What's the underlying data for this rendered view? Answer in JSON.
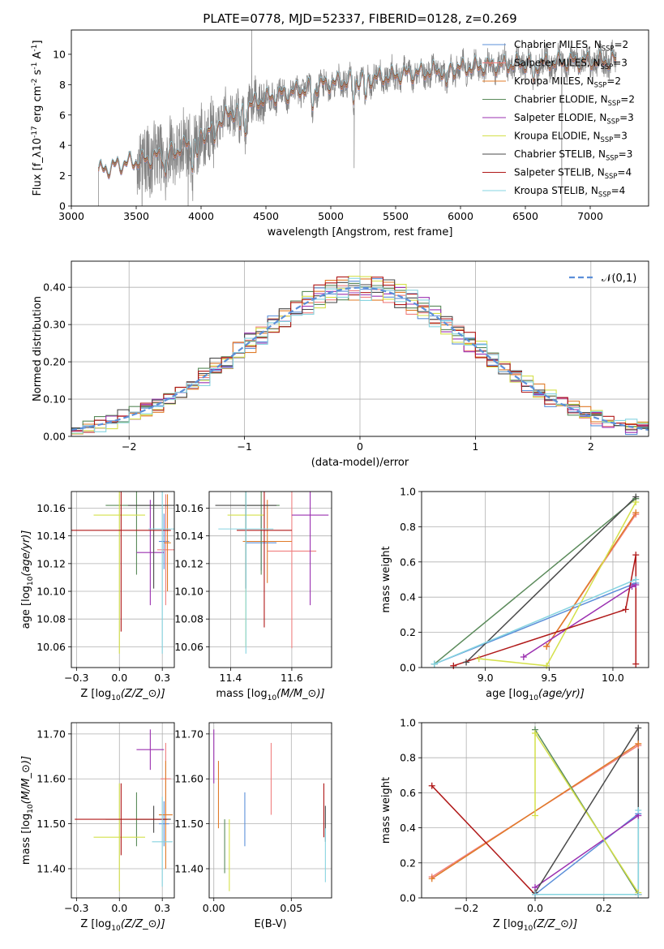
{
  "figure": {
    "title": "PLATE=0778, MJD=52337, FIBERID=0128, z=0.269"
  },
  "model_styles": [
    {
      "name": "Chabrier MILES, N$_{SSP}$=2",
      "color": "#5b8fd9"
    },
    {
      "name": "Salpeter MILES, N$_{SSP}$=3",
      "color": "#f08080"
    },
    {
      "name": "Kroupa MILES, N$_{SSP}$=2",
      "color": "#e07b28"
    },
    {
      "name": "Chabrier ELODIE, N$_{SSP}$=2",
      "color": "#5a8a5a"
    },
    {
      "name": "Salpeter ELODIE, N$_{SSP}$=3",
      "color": "#9b30b0"
    },
    {
      "name": "Kroupa ELODIE, N$_{SSP}$=3",
      "color": "#d4e04a"
    },
    {
      "name": "Chabrier STELIB, N$_{SSP}$=3",
      "color": "#4a4a4a"
    },
    {
      "name": "Salpeter STELIB, N$_{SSP}$=4",
      "color": "#b01818"
    },
    {
      "name": "Kroupa STELIB, N$_{SSP}$=4",
      "color": "#86d4e0"
    }
  ],
  "chart_data": [
    {
      "id": "spectrum",
      "type": "line",
      "xlabel": "wavelength [Angstrom, rest frame]",
      "ylabel": "Flux [f$_\\lambda$10$^{-17}$ erg cm$^{-2}$ s$^{-1}$ A$^{-1}$]",
      "xlim": [
        3000,
        7450
      ],
      "ylim": [
        0,
        11.6
      ],
      "xticks": [
        3000,
        3500,
        4000,
        4500,
        5000,
        5500,
        6000,
        6500,
        7000
      ],
      "yticks": [
        0,
        2,
        4,
        6,
        8,
        10
      ],
      "legend": "top-right",
      "data_color": "#808080",
      "data_range": [
        3210,
        7200
      ],
      "continuum": [
        [
          3210,
          2.3
        ],
        [
          3400,
          2.8
        ],
        [
          3600,
          3.1
        ],
        [
          3800,
          3.6
        ],
        [
          4000,
          4.6
        ],
        [
          4200,
          6.0
        ],
        [
          4500,
          7.1
        ],
        [
          5000,
          8.1
        ],
        [
          5500,
          8.6
        ],
        [
          6000,
          9.1
        ],
        [
          6500,
          9.4
        ],
        [
          7200,
          9.6
        ]
      ]
    },
    {
      "id": "residuals",
      "type": "line",
      "xlabel": "(data-model)/error",
      "ylabel": "Normed distribution",
      "xlim": [
        -2.5,
        2.5
      ],
      "ylim": [
        0,
        0.47
      ],
      "xticks": [
        -2,
        -1,
        0,
        1,
        2
      ],
      "yticks": [
        0.0,
        0.1,
        0.2,
        0.3,
        0.4
      ],
      "grid": true,
      "legend": "top-right",
      "reference_curve": {
        "name": "$\\mathcal{N}(0,1)$",
        "color": "#5b8fd9",
        "mean": 0,
        "sigma": 1
      },
      "bin_width": 0.1
    },
    {
      "id": "age-vs-Z",
      "type": "scatter",
      "xlabel": "Z [log$_{10}$($Z/Z_\\odot$)]",
      "ylabel": "age  [log$_{10}$($age/yr$)]",
      "xlim": [
        -0.28,
        0.32
      ],
      "ylim": [
        10.045,
        10.172
      ],
      "xticks": [
        -0.25,
        0.0,
        0.25
      ],
      "yticks": [
        10.06,
        10.08,
        10.1,
        10.12,
        10.14,
        10.16
      ],
      "grid": true,
      "points": [
        {
          "series": 0,
          "x": 0.26,
          "y": 10.136,
          "xerr": 0.03,
          "yerr": 0.02
        },
        {
          "series": 1,
          "x": 0.27,
          "y": 10.13,
          "xerr": 0.05,
          "yerr": 0.04
        },
        {
          "series": 2,
          "x": 0.28,
          "y": 10.135,
          "xerr": 0.02,
          "yerr": 0.035
        },
        {
          "series": 3,
          "x": 0.1,
          "y": 10.162,
          "xerr": 0.18,
          "yerr": 0.05
        },
        {
          "series": 4,
          "x": 0.18,
          "y": 10.128,
          "xerr": 0.08,
          "yerr": 0.038
        },
        {
          "series": 5,
          "x": 0.0,
          "y": 10.155,
          "xerr": 0.15,
          "yerr": 0.1
        },
        {
          "series": 6,
          "x": 0.2,
          "y": 10.162,
          "xerr": 0.15,
          "yerr": 0.06
        },
        {
          "series": 7,
          "x": 0.01,
          "y": 10.144,
          "xerr": 0.29,
          "yerr": 0.073
        },
        {
          "series": 8,
          "x": 0.25,
          "y": 10.145,
          "xerr": 0.08,
          "yerr": 0.09
        }
      ]
    },
    {
      "id": "age-vs-mass",
      "type": "scatter",
      "xlabel": "mass [log$_{10}$($M/M_\\odot$)]",
      "ylabel": "",
      "xlim": [
        11.33,
        11.73
      ],
      "ylim": [
        10.045,
        10.172
      ],
      "xticks": [
        11.4,
        11.6
      ],
      "yticks": [
        10.06,
        10.08,
        10.1,
        10.12,
        10.14,
        10.16
      ],
      "grid": true,
      "points": [
        {
          "series": 0,
          "x": 11.5,
          "y": 10.135,
          "xerr": 0.05,
          "yerr": 0.02
        },
        {
          "series": 1,
          "x": 11.6,
          "y": 10.129,
          "xerr": 0.08,
          "yerr": 0.07
        },
        {
          "series": 2,
          "x": 11.52,
          "y": 10.136,
          "xerr": 0.08,
          "yerr": 0.03
        },
        {
          "series": 3,
          "x": 11.5,
          "y": 10.162,
          "xerr": 0.06,
          "yerr": 0.05
        },
        {
          "series": 4,
          "x": 11.66,
          "y": 10.155,
          "xerr": 0.06,
          "yerr": 0.065
        },
        {
          "series": 5,
          "x": 11.45,
          "y": 10.155,
          "xerr": 0.06,
          "yerr": 0.095
        },
        {
          "series": 6,
          "x": 11.45,
          "y": 10.162,
          "xerr": 0.1,
          "yerr": 0.06
        },
        {
          "series": 7,
          "x": 11.51,
          "y": 10.144,
          "xerr": 0.09,
          "yerr": 0.07
        },
        {
          "series": 8,
          "x": 11.45,
          "y": 10.145,
          "xerr": 0.09,
          "yerr": 0.09
        }
      ]
    },
    {
      "id": "weight-vs-age",
      "type": "line",
      "xlabel": "age  [log$_{10}$($age/yr$)]",
      "ylabel": "mass weight",
      "xlim": [
        8.5,
        10.28
      ],
      "ylim": [
        0,
        1
      ],
      "xticks": [
        9.0,
        9.5,
        10.0
      ],
      "yticks": [
        0.0,
        0.2,
        0.4,
        0.6,
        0.8,
        1.0
      ],
      "grid": true,
      "series": [
        {
          "series": 0,
          "x": [
            8.6,
            10.18
          ],
          "y": [
            0.02,
            0.48
          ]
        },
        {
          "series": 1,
          "x": [
            9.48,
            10.18
          ],
          "y": [
            0.12,
            0.87
          ]
        },
        {
          "series": 2,
          "x": [
            9.48,
            10.18
          ],
          "y": [
            0.12,
            0.88
          ]
        },
        {
          "series": 3,
          "x": [
            8.6,
            10.18
          ],
          "y": [
            0.02,
            0.96
          ]
        },
        {
          "series": 4,
          "x": [
            9.3,
            10.15,
            10.18
          ],
          "y": [
            0.06,
            0.46,
            0.47
          ]
        },
        {
          "series": 5,
          "x": [
            8.95,
            9.48,
            10.18
          ],
          "y": [
            0.05,
            0.01,
            0.94
          ]
        },
        {
          "series": 6,
          "x": [
            8.85,
            10.18
          ],
          "y": [
            0.03,
            0.97
          ]
        },
        {
          "series": 7,
          "x": [
            8.75,
            10.1,
            10.18,
            10.18
          ],
          "y": [
            0.01,
            0.33,
            0.64,
            0.02
          ]
        },
        {
          "series": 8,
          "x": [
            8.6,
            10.18
          ],
          "y": [
            0.02,
            0.5
          ]
        }
      ]
    },
    {
      "id": "mass-vs-Z",
      "type": "scatter",
      "xlabel": "Z [log$_{10}$($Z/Z_\\odot$)]",
      "ylabel": "mass [log$_{10}$($M/M_\\odot$)]",
      "xlim": [
        -0.28,
        0.32
      ],
      "ylim": [
        11.335,
        11.725
      ],
      "xticks": [
        -0.25,
        0.0,
        0.25
      ],
      "yticks": [
        11.4,
        11.5,
        11.6,
        11.7
      ],
      "grid": true,
      "points": [
        {
          "series": 0,
          "x": 0.26,
          "y": 11.5,
          "xerr": 0.03,
          "yerr": 0.05
        },
        {
          "series": 1,
          "x": 0.27,
          "y": 11.6,
          "xerr": 0.03,
          "yerr": 0.08
        },
        {
          "series": 2,
          "x": 0.27,
          "y": 11.52,
          "xerr": 0.04,
          "yerr": 0.12
        },
        {
          "series": 3,
          "x": 0.1,
          "y": 11.51,
          "xerr": 0.18,
          "yerr": 0.06
        },
        {
          "series": 4,
          "x": 0.18,
          "y": 11.665,
          "xerr": 0.08,
          "yerr": 0.045
        },
        {
          "series": 5,
          "x": 0.0,
          "y": 11.47,
          "xerr": 0.15,
          "yerr": 0.12
        },
        {
          "series": 6,
          "x": 0.2,
          "y": 11.51,
          "xerr": 0.1,
          "yerr": 0.03
        },
        {
          "series": 7,
          "x": 0.01,
          "y": 11.51,
          "xerr": 0.27,
          "yerr": 0.08
        },
        {
          "series": 8,
          "x": 0.25,
          "y": 11.46,
          "xerr": 0.06,
          "yerr": 0.1
        }
      ]
    },
    {
      "id": "mass-vs-EBV",
      "type": "scatter",
      "xlabel": "E(B-V)",
      "ylabel": "",
      "xlim": [
        -0.003,
        0.076
      ],
      "ylim": [
        11.335,
        11.725
      ],
      "xticks": [
        0.0,
        0.05
      ],
      "yticks": [
        11.4,
        11.5,
        11.6,
        11.7
      ],
      "grid": true,
      "points": [
        {
          "series": 0,
          "x": 0.02,
          "y": 11.51,
          "xerr": 0,
          "yerr": 0.06
        },
        {
          "series": 1,
          "x": 0.037,
          "y": 11.6,
          "xerr": 0,
          "yerr": 0.08
        },
        {
          "series": 2,
          "x": 0.003,
          "y": 11.565,
          "xerr": 0,
          "yerr": 0.075
        },
        {
          "series": 3,
          "x": 0.007,
          "y": 11.45,
          "xerr": 0,
          "yerr": 0.06
        },
        {
          "series": 4,
          "x": 0.0,
          "y": 11.65,
          "xerr": 0,
          "yerr": 0.06
        },
        {
          "series": 5,
          "x": 0.01,
          "y": 11.43,
          "xerr": 0,
          "yerr": 0.08
        },
        {
          "series": 6,
          "x": 0.072,
          "y": 11.5,
          "xerr": 0,
          "yerr": 0.04
        },
        {
          "series": 7,
          "x": 0.071,
          "y": 11.53,
          "xerr": 0,
          "yerr": 0.06
        },
        {
          "series": 8,
          "x": 0.072,
          "y": 11.43,
          "xerr": 0,
          "yerr": 0.06
        }
      ]
    },
    {
      "id": "weight-vs-Z",
      "type": "line",
      "xlabel": "Z [log$_{10}$($Z/Z_\\odot$)]",
      "ylabel": "mass weight",
      "xlim": [
        -0.33,
        0.33
      ],
      "ylim": [
        0,
        1
      ],
      "xticks": [
        -0.2,
        0.0,
        0.2
      ],
      "yticks": [
        0.0,
        0.2,
        0.4,
        0.6,
        0.8,
        1.0
      ],
      "grid": true,
      "series": [
        {
          "series": 0,
          "x": [
            0.0,
            0.3
          ],
          "y": [
            0.02,
            0.48
          ]
        },
        {
          "series": 1,
          "x": [
            -0.3,
            0.3
          ],
          "y": [
            0.12,
            0.87
          ]
        },
        {
          "series": 2,
          "x": [
            -0.3,
            0.3
          ],
          "y": [
            0.11,
            0.88
          ]
        },
        {
          "series": 3,
          "x": [
            0.0,
            0.3
          ],
          "y": [
            0.96,
            0.02
          ]
        },
        {
          "series": 4,
          "x": [
            0.0,
            0.3
          ],
          "y": [
            0.06,
            0.47
          ]
        },
        {
          "series": 5,
          "x": [
            0.0,
            0.0,
            0.3
          ],
          "y": [
            0.47,
            0.94,
            0.03
          ]
        },
        {
          "series": 6,
          "x": [
            0.0,
            0.3,
            0.3
          ],
          "y": [
            0.03,
            0.97,
            0.02
          ]
        },
        {
          "series": 7,
          "x": [
            -0.3,
            0.0,
            0.3
          ],
          "y": [
            0.64,
            0.02,
            0.02
          ]
        },
        {
          "series": 8,
          "x": [
            0.0,
            0.3,
            0.3
          ],
          "y": [
            0.02,
            0.02,
            0.5
          ]
        }
      ]
    }
  ]
}
